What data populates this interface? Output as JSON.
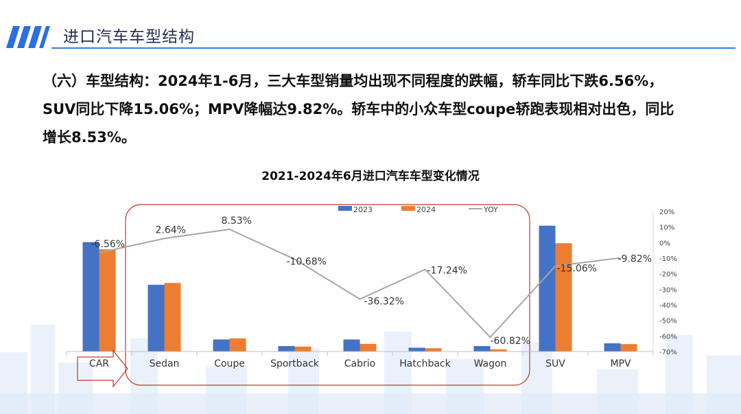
{
  "slide": {
    "title": "进口汽车车型结构",
    "paragraph_lines": [
      "（六）车型结构：2024年1-6月，三大车型销量均出现不同程度的跌幅，轿车同比下跌6.56%，",
      "SUV同比下降15.06%；MPV降幅达9.82%。轿车中的小众车型coupe轿跑表现相对出色，同比",
      "增长8.53%。"
    ]
  },
  "colors": {
    "header_bars": "#2b6fe0",
    "header_line": "#3a7be2",
    "series_2023": "#4472c4",
    "series_2024": "#ed7d31",
    "yoy_line": "#a6a6a6",
    "highlight_box": "#c0392b"
  },
  "chart_data": {
    "type": "bar",
    "title": "2021-2024年6月进口汽车车型变化情况",
    "categories": [
      "CAR",
      "Sedan",
      "Coupe",
      "Sportback",
      "Cabrio",
      "Hatchback",
      "Wagon",
      "SUV",
      "MPV"
    ],
    "series": [
      {
        "name": "2023",
        "values": [
          100,
          61,
          11,
          5,
          11,
          3.5,
          5,
          115,
          7.5
        ]
      },
      {
        "name": "2024",
        "values": [
          93.4,
          62.6,
          12,
          4.5,
          7,
          3,
          2,
          99,
          6.8
        ]
      }
    ],
    "line_series": {
      "name": "YOY",
      "axis": "right",
      "values": [
        -6.56,
        2.64,
        8.53,
        -10.68,
        -36.32,
        -17.24,
        -60.82,
        -15.06,
        -9.82
      ],
      "labels": [
        "-6.56%",
        "2.64%",
        "8.53%",
        "-10.68%",
        "-36.32%",
        "-17.24%",
        "-60.82%",
        "-15.06%",
        "-9.82%"
      ]
    },
    "right_axis": {
      "ylim": [
        -70,
        20
      ],
      "ticks": [
        "20%",
        "10%",
        "0%",
        "-10%",
        "-20%",
        "-30%",
        "-40%",
        "-50%",
        "-60%",
        "-70%"
      ]
    },
    "left_axis_ylim": [
      0,
      128
    ],
    "legend": {
      "position": "top",
      "items": [
        "2023",
        "2024",
        "YOY"
      ]
    },
    "grid": false
  }
}
